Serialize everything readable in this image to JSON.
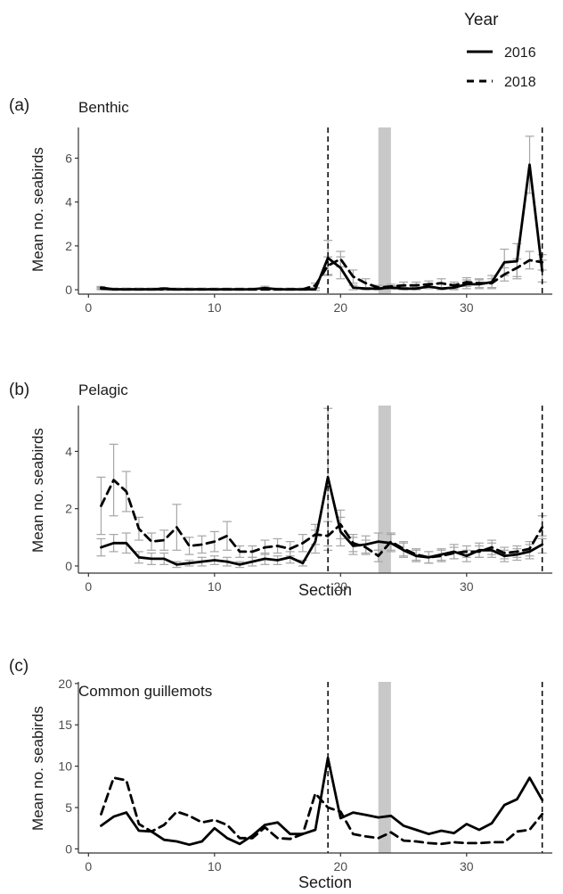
{
  "legend": {
    "title": "Year",
    "entries": [
      {
        "label": "2016",
        "style": "solid"
      },
      {
        "label": "2018",
        "style": "dashed"
      }
    ]
  },
  "colors": {
    "line": "#000000",
    "errorbar": "#a6a6a6",
    "band": "#c8c8c8",
    "axis": "#333333",
    "text": "#1a1a1a"
  },
  "chart_data": [
    {
      "type": "line",
      "panel_label": "(a)",
      "title": "Benthic",
      "xlabel": "",
      "ylabel": "Mean no. seabirds",
      "xlim": [
        -0.8,
        36.8
      ],
      "ylim": [
        -0.2,
        7.4
      ],
      "xticks": [
        0,
        10,
        20,
        30
      ],
      "yticks": [
        0,
        2,
        4,
        6
      ],
      "vlines": [
        19,
        36
      ],
      "band": [
        23,
        24
      ],
      "x": [
        1,
        2,
        3,
        4,
        5,
        6,
        7,
        8,
        9,
        10,
        11,
        12,
        13,
        14,
        15,
        16,
        17,
        18,
        19,
        20,
        21,
        22,
        23,
        24,
        25,
        26,
        27,
        28,
        29,
        30,
        31,
        32,
        33,
        34,
        35,
        36
      ],
      "series": [
        {
          "name": "2016",
          "style": "solid",
          "values": [
            0.1,
            0.02,
            0.02,
            0.02,
            0.02,
            0.05,
            0.02,
            0.02,
            0.02,
            0.02,
            0.02,
            0.02,
            0.02,
            0.08,
            0.02,
            0.02,
            0.02,
            0.02,
            1.45,
            1.0,
            0.1,
            0.05,
            0.05,
            0.1,
            0.05,
            0.05,
            0.15,
            0.05,
            0.1,
            0.25,
            0.25,
            0.35,
            1.25,
            1.3,
            5.7,
            0.85
          ],
          "err": [
            0.05,
            0.05,
            0.05,
            0.05,
            0.05,
            0.05,
            0.05,
            0.05,
            0.05,
            0.05,
            0.05,
            0.05,
            0.05,
            0.08,
            0.05,
            0.05,
            0.05,
            0.05,
            0.8,
            0.5,
            0.1,
            0.05,
            0.05,
            0.08,
            0.05,
            0.05,
            0.1,
            0.05,
            0.1,
            0.2,
            0.2,
            0.3,
            0.6,
            0.8,
            1.3,
            0.5
          ]
        },
        {
          "name": "2018",
          "style": "dashed",
          "values": [
            0.05,
            0.02,
            0.02,
            0.02,
            0.02,
            0.02,
            0.02,
            0.02,
            0.02,
            0.02,
            0.02,
            0.02,
            0.02,
            0.02,
            0.02,
            0.02,
            0.02,
            0.2,
            1.1,
            1.4,
            0.6,
            0.3,
            0.1,
            0.15,
            0.2,
            0.2,
            0.25,
            0.3,
            0.2,
            0.35,
            0.3,
            0.3,
            0.7,
            1.0,
            1.35,
            1.25
          ],
          "err": [
            0.05,
            0.05,
            0.05,
            0.05,
            0.05,
            0.05,
            0.05,
            0.05,
            0.05,
            0.05,
            0.05,
            0.05,
            0.05,
            0.05,
            0.05,
            0.05,
            0.05,
            0.1,
            0.4,
            0.35,
            0.3,
            0.2,
            0.1,
            0.1,
            0.15,
            0.15,
            0.15,
            0.2,
            0.15,
            0.2,
            0.2,
            0.2,
            0.3,
            0.4,
            0.4,
            0.35
          ]
        }
      ]
    },
    {
      "type": "line",
      "panel_label": "(b)",
      "title": "Pelagic",
      "xlabel": "Section",
      "ylabel": "Mean no. seabirds",
      "xlim": [
        -0.8,
        36.8
      ],
      "ylim": [
        -0.25,
        5.6
      ],
      "xticks": [
        0,
        10,
        20,
        30
      ],
      "yticks": [
        0,
        2,
        4
      ],
      "vlines": [
        19,
        36
      ],
      "band": [
        23,
        24
      ],
      "x": [
        1,
        2,
        3,
        4,
        5,
        6,
        7,
        8,
        9,
        10,
        11,
        12,
        13,
        14,
        15,
        16,
        17,
        18,
        19,
        20,
        21,
        22,
        23,
        24,
        25,
        26,
        27,
        28,
        29,
        30,
        31,
        32,
        33,
        34,
        35,
        36
      ],
      "series": [
        {
          "name": "2016",
          "style": "solid",
          "values": [
            0.65,
            0.8,
            0.8,
            0.3,
            0.25,
            0.25,
            0.05,
            0.1,
            0.15,
            0.2,
            0.15,
            0.05,
            0.15,
            0.25,
            0.2,
            0.3,
            0.1,
            0.85,
            3.1,
            1.2,
            0.7,
            0.75,
            0.85,
            0.8,
            0.55,
            0.35,
            0.3,
            0.4,
            0.5,
            0.35,
            0.55,
            0.55,
            0.35,
            0.4,
            0.5,
            0.75
          ],
          "err": [
            0.3,
            0.3,
            0.35,
            0.2,
            0.2,
            0.2,
            0.1,
            0.1,
            0.15,
            0.15,
            0.15,
            0.1,
            0.15,
            0.2,
            0.15,
            0.2,
            0.1,
            0.4,
            2.4,
            0.5,
            0.3,
            0.3,
            0.3,
            0.3,
            0.25,
            0.2,
            0.2,
            0.2,
            0.25,
            0.2,
            0.25,
            0.25,
            0.2,
            0.2,
            0.25,
            0.3
          ]
        },
        {
          "name": "2018",
          "style": "dashed",
          "values": [
            2.1,
            3.0,
            2.6,
            1.3,
            0.85,
            0.9,
            1.35,
            0.7,
            0.75,
            0.85,
            1.05,
            0.5,
            0.5,
            0.65,
            0.7,
            0.6,
            0.8,
            1.1,
            1.05,
            1.45,
            0.8,
            0.65,
            0.35,
            0.85,
            0.6,
            0.4,
            0.3,
            0.35,
            0.45,
            0.5,
            0.5,
            0.65,
            0.45,
            0.5,
            0.6,
            1.35
          ],
          "err": [
            1.0,
            1.25,
            0.7,
            0.4,
            0.3,
            0.35,
            0.8,
            0.3,
            0.3,
            0.35,
            0.5,
            0.2,
            0.2,
            0.25,
            0.25,
            0.25,
            0.3,
            0.35,
            0.5,
            0.5,
            0.3,
            0.25,
            0.2,
            0.3,
            0.25,
            0.2,
            0.2,
            0.2,
            0.2,
            0.2,
            0.2,
            0.25,
            0.2,
            0.2,
            0.25,
            0.4
          ]
        }
      ]
    },
    {
      "type": "line",
      "panel_label": "(c)",
      "title": "Common guillemots",
      "xlabel": "Section",
      "ylabel": "Mean no. seabirds",
      "xlim": [
        -0.8,
        36.8
      ],
      "ylim": [
        -0.5,
        20.2
      ],
      "xticks": [
        0,
        10,
        20,
        30
      ],
      "yticks": [
        0,
        5,
        10,
        15,
        20
      ],
      "vlines": [
        19,
        36
      ],
      "band": [
        23,
        24
      ],
      "x": [
        1,
        2,
        3,
        4,
        5,
        6,
        7,
        8,
        9,
        10,
        11,
        12,
        13,
        14,
        15,
        16,
        17,
        18,
        19,
        20,
        21,
        22,
        23,
        24,
        25,
        26,
        27,
        28,
        29,
        30,
        31,
        32,
        33,
        34,
        35,
        36
      ],
      "series": [
        {
          "name": "2016",
          "style": "solid",
          "values": [
            2.8,
            3.9,
            4.4,
            2.2,
            2.1,
            1.1,
            0.9,
            0.5,
            0.9,
            2.5,
            1.3,
            0.6,
            1.6,
            2.9,
            3.2,
            1.8,
            1.8,
            2.3,
            11.0,
            3.7,
            4.4,
            4.1,
            3.8,
            4.0,
            2.8,
            2.3,
            1.8,
            2.2,
            1.9,
            3.0,
            2.3,
            3.1,
            5.3,
            6.0,
            8.6,
            5.9
          ]
        },
        {
          "name": "2018",
          "style": "dashed",
          "values": [
            4.2,
            8.6,
            8.3,
            3.0,
            2.1,
            2.9,
            4.5,
            4.0,
            3.2,
            3.5,
            2.9,
            1.3,
            1.3,
            2.6,
            1.3,
            1.2,
            1.8,
            6.7,
            5.0,
            4.5,
            1.8,
            1.5,
            1.3,
            2.0,
            1.0,
            0.9,
            0.7,
            0.6,
            0.8,
            0.7,
            0.7,
            0.8,
            0.8,
            2.1,
            2.3,
            4.2
          ]
        }
      ]
    }
  ]
}
